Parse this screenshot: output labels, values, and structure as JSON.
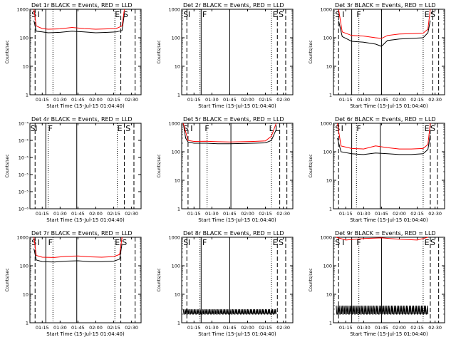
{
  "chart_data": [
    {
      "title": "Det 1r BLACK = Events, RED = LLD",
      "type": "line",
      "ylabel": "Counts/sec",
      "xlabel": "Start Time (15-Jul-15 01:04:40)",
      "xticks": [
        "01:15",
        "01:30",
        "01:45",
        "02:00",
        "02:15",
        "02:30"
      ],
      "yscale": "log",
      "ylim": [
        1,
        1000
      ],
      "yticks": [
        "1",
        "10",
        "100",
        "1000"
      ],
      "markers": {
        "solid": [
          "01:18",
          "01:44"
        ],
        "dashed": [
          "01:09",
          "02:21",
          "02:33"
        ],
        "dotted": [
          "01:24",
          "02:16"
        ]
      },
      "labels": [
        {
          "text": "S",
          "at": "01:06"
        },
        {
          "text": "I",
          "at": "01:11"
        },
        {
          "text": "E",
          "at": "02:16"
        },
        {
          "text": "S",
          "at": "02:23"
        }
      ],
      "series": [
        {
          "name": "Events",
          "color": "#000000",
          "x": [
            "01:08",
            "01:10",
            "01:15",
            "01:20",
            "01:30",
            "01:40",
            "01:50",
            "02:00",
            "02:10",
            "02:17",
            "02:22",
            "02:24"
          ],
          "values": [
            400,
            170,
            160,
            150,
            155,
            170,
            160,
            150,
            155,
            160,
            180,
            700
          ]
        },
        {
          "name": "LLD",
          "color": "#ff0000",
          "x": [
            "01:08",
            "01:10",
            "01:15",
            "01:20",
            "01:30",
            "01:40",
            "01:50",
            "02:00",
            "02:10",
            "02:17",
            "02:22",
            "02:24"
          ],
          "values": [
            1000,
            260,
            210,
            200,
            205,
            230,
            210,
            200,
            205,
            210,
            260,
            1000
          ]
        }
      ]
    },
    {
      "title": "Det 2r BLACK = Events, RED = LLD",
      "type": "line",
      "ylabel": "Counts/sec",
      "xlabel": "Start Time (15-Jul-15 01:04:40)",
      "xticks": [
        "01:15",
        "01:30",
        "01:45",
        "02:00",
        "02:15",
        "02:30"
      ],
      "yscale": "log",
      "ylim": [
        1,
        1000
      ],
      "yticks": [
        "1",
        "10",
        "100",
        "1000"
      ],
      "markers": {
        "solid": [
          "01:21",
          "01:45"
        ],
        "dashed": [
          "01:09",
          "02:25",
          "02:32"
        ],
        "dotted": [
          "01:20",
          "02:20"
        ]
      },
      "labels": [
        {
          "text": "S",
          "at": "01:06"
        },
        {
          "text": "I",
          "at": "01:10"
        },
        {
          "text": "F",
          "at": "01:22"
        },
        {
          "text": "E",
          "at": "02:21"
        },
        {
          "text": "S",
          "at": "02:26"
        }
      ],
      "series": []
    },
    {
      "title": "Det 3r BLACK = Events, RED = LLD",
      "type": "line",
      "ylabel": "Counts/sec",
      "xlabel": "Start Time (15-Jul-15 01:04:40)",
      "xticks": [
        "01:15",
        "01:30",
        "01:45",
        "02:00",
        "02:15",
        "02:30"
      ],
      "yscale": "log",
      "ylim": [
        1,
        1000
      ],
      "yticks": [
        "1",
        "10",
        "100",
        "1000"
      ],
      "markers": {
        "solid": [
          "01:20",
          "01:45"
        ],
        "dashed": [
          "01:09",
          "02:28",
          "02:33"
        ],
        "dotted": [
          "01:26",
          "02:20"
        ]
      },
      "labels": [
        {
          "text": "S",
          "at": "01:06"
        },
        {
          "text": "I",
          "at": "01:12"
        },
        {
          "text": "F",
          "at": "01:24"
        },
        {
          "text": "E",
          "at": "02:21"
        },
        {
          "text": "S",
          "at": "02:26"
        }
      ],
      "series": [
        {
          "name": "Events",
          "color": "#000000",
          "x": [
            "01:09",
            "01:12",
            "01:20",
            "01:30",
            "01:40",
            "01:45",
            "01:50",
            "02:00",
            "02:10",
            "02:20",
            "02:24",
            "02:26"
          ],
          "values": [
            400,
            110,
            75,
            70,
            60,
            50,
            80,
            90,
            95,
            100,
            150,
            400
          ]
        },
        {
          "name": "LLD",
          "color": "#ff0000",
          "x": [
            "01:09",
            "01:12",
            "01:20",
            "01:30",
            "01:40",
            "01:45",
            "01:50",
            "02:00",
            "02:10",
            "02:20",
            "02:24",
            "02:26"
          ],
          "values": [
            1000,
            160,
            120,
            115,
            100,
            95,
            120,
            135,
            140,
            145,
            200,
            1000
          ]
        }
      ]
    },
    {
      "title": "Det 4r BLACK = Events, RED = LLD",
      "type": "line",
      "ylabel": "Counts/sec",
      "xlabel": "Start Time (15-Jul-15 01:04:40)",
      "xticks": [
        "01:15",
        "01:30",
        "01:45",
        "02:00",
        "02:15",
        "02:30"
      ],
      "yscale": "log",
      "ylim": [
        1e-06,
        0.0001
      ],
      "yticks": [
        "10⁻⁶",
        "10⁻⁵",
        "10⁻⁵",
        "10⁻⁵",
        "10⁻⁵",
        "10⁻⁴"
      ],
      "markers": {
        "solid": [
          "01:18",
          "01:44"
        ],
        "dashed": [
          "01:09",
          "02:24",
          "02:32"
        ],
        "dotted": [
          "01:20",
          "02:18"
        ]
      },
      "labels": [
        {
          "text": "S",
          "at": "01:05"
        },
        {
          "text": "I",
          "at": "01:09"
        },
        {
          "text": "F",
          "at": "01:20"
        },
        {
          "text": "E",
          "at": "02:18"
        },
        {
          "text": "S",
          "at": "02:25"
        }
      ],
      "series": []
    },
    {
      "title": "Det 5r BLACK = Events, RED = LLD",
      "type": "line",
      "ylabel": "Counts/sec",
      "xlabel": "Start Time (15-Jul-15 01:04:40)",
      "xticks": [
        "01:15",
        "01:30",
        "01:45",
        "02:00",
        "02:15",
        "02:30"
      ],
      "yscale": "log",
      "ylim": [
        1,
        1000
      ],
      "yticks": [
        "1",
        "10",
        "100",
        "1000"
      ],
      "markers": {
        "solid": [
          "01:20",
          "01:46"
        ],
        "dashed": [
          "01:10",
          "02:27",
          "02:33"
        ],
        "dotted": [
          "01:26",
          "02:20"
        ]
      },
      "labels": [
        {
          "text": "S",
          "at": "01:06"
        },
        {
          "text": "I",
          "at": "01:12"
        },
        {
          "text": "F",
          "at": "01:24"
        },
        {
          "text": "L",
          "at": "02:18"
        },
        {
          "text": "L",
          "at": "02:23"
        }
      ],
      "series": [
        {
          "name": "Events",
          "color": "#000000",
          "x": [
            "01:06",
            "01:08",
            "01:10",
            "01:15",
            "01:25",
            "01:35",
            "01:45",
            "01:55",
            "02:05",
            "02:15",
            "02:20",
            "02:24"
          ],
          "values": [
            1000,
            300,
            220,
            200,
            200,
            190,
            190,
            195,
            200,
            205,
            250,
            600
          ]
        },
        {
          "name": "LLD",
          "color": "#ff0000",
          "x": [
            "01:06",
            "01:08",
            "01:10",
            "01:15",
            "01:25",
            "01:35",
            "01:45",
            "01:55",
            "02:05",
            "02:15",
            "02:20",
            "02:24"
          ],
          "values": [
            1000,
            500,
            250,
            230,
            235,
            225,
            220,
            225,
            230,
            240,
            350,
            1000
          ]
        }
      ]
    },
    {
      "title": "Det 6r BLACK = Events, RED = LLD",
      "type": "line",
      "ylabel": "Counts/sec",
      "xlabel": "Start Time (15-Jul-15 01:04:40)",
      "xticks": [
        "01:15",
        "01:30",
        "01:45",
        "02:00",
        "02:15",
        "02:30"
      ],
      "yscale": "log",
      "ylim": [
        1,
        1000
      ],
      "yticks": [
        "1",
        "10",
        "100",
        "1000"
      ],
      "markers": {
        "solid": [
          "01:20",
          "01:44"
        ],
        "dashed": [
          "01:09",
          "02:26",
          "02:32"
        ],
        "dotted": [
          "01:24",
          "02:20"
        ]
      },
      "labels": [
        {
          "text": "S",
          "at": "01:06"
        },
        {
          "text": "I",
          "at": "01:11"
        },
        {
          "text": "F",
          "at": "01:24"
        },
        {
          "text": "E",
          "at": "02:21"
        },
        {
          "text": "S",
          "at": "02:26"
        }
      ],
      "series": [
        {
          "name": "Events",
          "color": "#000000",
          "x": [
            "01:08",
            "01:11",
            "01:20",
            "01:30",
            "01:40",
            "01:50",
            "02:00",
            "02:10",
            "02:20",
            "02:24",
            "02:26"
          ],
          "values": [
            300,
            100,
            85,
            80,
            90,
            85,
            80,
            80,
            85,
            120,
            400
          ]
        },
        {
          "name": "LLD",
          "color": "#ff0000",
          "x": [
            "01:08",
            "01:11",
            "01:20",
            "01:30",
            "01:40",
            "01:50",
            "02:00",
            "02:10",
            "02:20",
            "02:24",
            "02:26"
          ],
          "values": [
            1000,
            160,
            130,
            125,
            160,
            140,
            125,
            125,
            130,
            180,
            1000
          ]
        }
      ]
    },
    {
      "title": "Det 7r BLACK = Events, RED = LLD",
      "type": "line",
      "ylabel": "Counts/sec",
      "xlabel": "Start Time (15-Jul-15 01:04:40)",
      "xticks": [
        "01:15",
        "01:30",
        "01:45",
        "02:00",
        "02:15",
        "02:30"
      ],
      "yscale": "log",
      "ylim": [
        1,
        1000
      ],
      "yticks": [
        "1",
        "10",
        "100",
        "1000"
      ],
      "markers": {
        "solid": [
          "01:18",
          "01:44"
        ],
        "dashed": [
          "01:09",
          "02:21",
          "02:33"
        ],
        "dotted": [
          "01:24",
          "02:16"
        ]
      },
      "labels": [
        {
          "text": "S",
          "at": "01:06"
        },
        {
          "text": "I",
          "at": "01:11"
        },
        {
          "text": "F",
          "at": "01:20"
        },
        {
          "text": "E",
          "at": "02:16"
        },
        {
          "text": "S",
          "at": "02:22"
        }
      ],
      "series": [
        {
          "name": "Events",
          "color": "#000000",
          "x": [
            "01:08",
            "01:10",
            "01:15",
            "01:25",
            "01:35",
            "01:45",
            "01:55",
            "02:05",
            "02:15",
            "02:20",
            "02:22"
          ],
          "values": [
            400,
            160,
            140,
            135,
            145,
            150,
            140,
            140,
            145,
            170,
            600
          ]
        },
        {
          "name": "LLD",
          "color": "#ff0000",
          "x": [
            "01:08",
            "01:10",
            "01:15",
            "01:25",
            "01:35",
            "01:45",
            "01:55",
            "02:05",
            "02:15",
            "02:20",
            "02:22"
          ],
          "values": [
            1000,
            230,
            200,
            195,
            215,
            220,
            205,
            200,
            210,
            250,
            1000
          ]
        }
      ]
    },
    {
      "title": "Det 8r BLACK = Events, RED = LLD",
      "type": "line",
      "ylabel": "Counts/sec",
      "xlabel": "Start Time (15-Jul-15 01:04:40)",
      "xticks": [
        "01:15",
        "01:30",
        "01:45",
        "02:00",
        "02:15",
        "02:30"
      ],
      "yscale": "log",
      "ylim": [
        1,
        1000
      ],
      "yticks": [
        "1",
        "10",
        "100",
        "1000"
      ],
      "markers": {
        "solid": [
          "01:21",
          "01:45"
        ],
        "dashed": [
          "01:09",
          "02:25",
          "02:32"
        ],
        "dotted": [
          "01:20",
          "02:20"
        ]
      },
      "labels": [
        {
          "text": "S",
          "at": "01:06"
        },
        {
          "text": "I",
          "at": "01:10"
        },
        {
          "text": "F",
          "at": "01:22"
        },
        {
          "text": "E",
          "at": "02:21"
        },
        {
          "text": "S",
          "at": "02:26"
        }
      ],
      "series": [
        {
          "name": "Events",
          "color": "#000000",
          "noise": [
            2,
            3
          ],
          "x": [
            "01:06",
            "02:24"
          ],
          "values": [
            2,
            3
          ]
        }
      ]
    },
    {
      "title": "Det 9r BLACK = Events, RED = LLD",
      "type": "line",
      "ylabel": "Counts/sec",
      "xlabel": "Start Time (15-Jul-15 01:04:40)",
      "xticks": [
        "01:15",
        "01:30",
        "01:45",
        "02:00",
        "02:15",
        "02:30"
      ],
      "yscale": "log",
      "ylim": [
        1,
        1000
      ],
      "yticks": [
        "1",
        "10",
        "100",
        "1000"
      ],
      "markers": {
        "solid": [
          "01:20",
          "01:45"
        ],
        "dashed": [
          "01:09",
          "02:26",
          "02:33"
        ],
        "dotted": [
          "01:26",
          "02:20"
        ]
      },
      "labels": [
        {
          "text": "S",
          "at": "01:06"
        },
        {
          "text": "I",
          "at": "01:12"
        },
        {
          "text": "F",
          "at": "01:24"
        },
        {
          "text": "E",
          "at": "02:21"
        },
        {
          "text": "S",
          "at": "02:26"
        }
      ],
      "series": [
        {
          "name": "Events",
          "color": "#000000",
          "noise": [
            2,
            4
          ],
          "x": [
            "01:07",
            "02:24"
          ],
          "values": [
            2,
            4
          ]
        },
        {
          "name": "LLD",
          "color": "#ff0000",
          "x": [
            "01:07",
            "01:15",
            "01:30",
            "01:45",
            "02:00",
            "02:15",
            "02:24"
          ],
          "values": [
            1000,
            800,
            900,
            950,
            850,
            800,
            1000
          ]
        }
      ]
    }
  ]
}
